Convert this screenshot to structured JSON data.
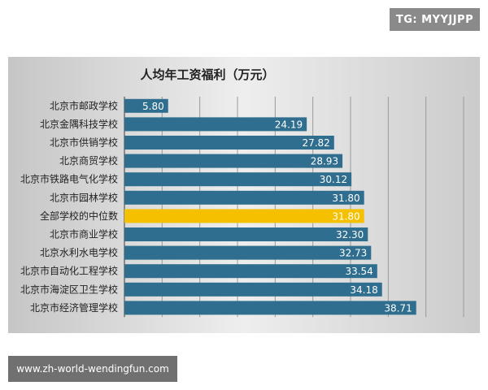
{
  "tag": "TG: MYYJJPP",
  "footer": "www.zh-world-wendingfun.com",
  "colors": {
    "bar": "#2f6e8e",
    "highlight": "#f5c000",
    "background": "#ffffff"
  },
  "chart_data": {
    "type": "bar",
    "orientation": "horizontal",
    "title": "人均年工资福利（万元）",
    "xlabel": "",
    "ylabel": "",
    "xlim": [
      0,
      45
    ],
    "grid": true,
    "categories": [
      "北京市邮政学校",
      "北京金隅科技学校",
      "北京市供销学校",
      "北京商贸学校",
      "北京市铁路电气化学校",
      "北京市园林学校",
      "全部学校的中位数",
      "北京市商业学校",
      "北京水利水电学校",
      "北京市自动化工程学校",
      "北京市海淀区卫生学校",
      "北京市经济管理学校"
    ],
    "values": [
      5.8,
      24.19,
      27.82,
      28.93,
      30.12,
      31.8,
      31.8,
      32.3,
      32.73,
      33.54,
      34.18,
      38.71
    ],
    "value_labels": [
      "5.80",
      "24.19",
      "27.82",
      "28.93",
      "30.12",
      "31.80",
      "31.80",
      "32.30",
      "32.73",
      "33.54",
      "34.18",
      "38.71"
    ],
    "highlight_index": 6
  }
}
